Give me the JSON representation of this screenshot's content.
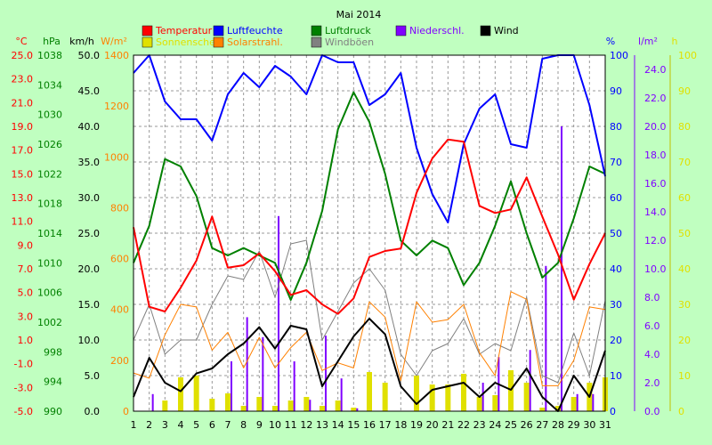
{
  "chart_data": {
    "type": "line",
    "title": "Mai 2014",
    "grid": true,
    "x": [
      1,
      2,
      3,
      4,
      5,
      6,
      7,
      8,
      9,
      10,
      11,
      12,
      13,
      14,
      15,
      16,
      17,
      18,
      19,
      20,
      21,
      22,
      23,
      24,
      25,
      26,
      27,
      28,
      29,
      30,
      31
    ],
    "xlim": [
      1,
      31
    ],
    "legend": [
      {
        "name": "Temperatur",
        "color": "#ff0000"
      },
      {
        "name": "Luftfeuchte",
        "color": "#0000ff"
      },
      {
        "name": "Luftdruck",
        "color": "#008000"
      },
      {
        "name": "Niederschl.",
        "color": "#8000ff"
      },
      {
        "name": "Wind",
        "color": "#000000"
      },
      {
        "name": "Sonnenschein",
        "color": "#e0e000"
      },
      {
        "name": "Solarstrahl.",
        "color": "#ff8000"
      },
      {
        "name": "Windböen",
        "color": "#808080"
      }
    ],
    "axes": {
      "temperature": {
        "unit": "°C",
        "color": "#ff0000",
        "range": [
          -5,
          25
        ],
        "ticks": [
          "25.0",
          "23.0",
          "21.0",
          "19.0",
          "17.0",
          "15.0",
          "13.0",
          "11.0",
          "9.0",
          "7.0",
          "5.0",
          "3.0",
          "1.0",
          "-1.0",
          "-3.0",
          "-5.0"
        ]
      },
      "pressure": {
        "unit": "hPa",
        "color": "#008000",
        "range": [
          990,
          1038
        ],
        "ticks": [
          "1038",
          "1034",
          "1030",
          "1026",
          "1022",
          "1018",
          "1014",
          "1010",
          "1006",
          "1002",
          "998",
          "994",
          "990"
        ]
      },
      "wind": {
        "unit": "km/h",
        "color": "#000000",
        "range": [
          0,
          50
        ],
        "ticks": [
          "50.0",
          "45.0",
          "40.0",
          "35.0",
          "30.0",
          "25.0",
          "20.0",
          "15.0",
          "10.0",
          "5.0",
          "0.0"
        ]
      },
      "solar": {
        "unit": "W/m²",
        "color": "#ff8000",
        "range": [
          0,
          1400
        ],
        "ticks": [
          "1400",
          "1200",
          "1000",
          "800",
          "600",
          "400",
          "200",
          "0"
        ]
      },
      "humidity": {
        "unit": "%",
        "color": "#0000ff",
        "range": [
          0,
          100
        ],
        "ticks": [
          "100",
          "90",
          "80",
          "70",
          "60",
          "50",
          "40",
          "30",
          "20",
          "10",
          "0"
        ]
      },
      "precipitation": {
        "unit": "l/m²",
        "color": "#8000ff",
        "range": [
          0,
          25
        ],
        "ticks": [
          "24.0",
          "22.0",
          "20.0",
          "18.0",
          "16.0",
          "14.0",
          "12.0",
          "10.0",
          "8.0",
          "6.0",
          "4.0",
          "2.0",
          "0.0"
        ]
      },
      "sunshine": {
        "unit": "h",
        "color": "#e0e000",
        "range": [
          0,
          100
        ],
        "ticks": [
          "100",
          "90",
          "80",
          "70",
          "60",
          "50",
          "40",
          "30",
          "20",
          "10",
          "0"
        ]
      }
    },
    "series": [
      {
        "name": "Temperatur",
        "axis": "temperature",
        "kind": "line",
        "color": "#ff0000",
        "values": [
          10.5,
          3.8,
          3.4,
          5.4,
          7.7,
          11.4,
          7.1,
          7.3,
          8.3,
          6.8,
          4.8,
          5.2,
          4.0,
          3.2,
          4.5,
          8.0,
          8.5,
          8.7,
          13.4,
          16.3,
          17.9,
          17.7,
          12.3,
          11.7,
          12.0,
          14.7,
          11.4,
          8.2,
          4.4,
          7.4,
          10.0
        ]
      },
      {
        "name": "Luftfeuchte",
        "axis": "humidity",
        "kind": "line",
        "color": "#0000ff",
        "values": [
          95,
          100,
          87,
          82,
          82,
          76,
          89,
          95,
          91,
          97,
          94,
          89,
          100,
          98,
          98,
          86,
          89,
          95,
          74,
          61,
          53,
          75,
          85,
          89,
          75,
          74,
          99,
          100,
          100,
          86,
          66
        ]
      },
      {
        "name": "Luftdruck",
        "axis": "pressure",
        "kind": "line",
        "color": "#008000",
        "values": [
          1010,
          1015,
          1024,
          1023,
          1019,
          1012,
          1011,
          1012,
          1011,
          1010,
          1005,
          1010,
          1017,
          1028,
          1033,
          1029,
          1022,
          1013,
          1011,
          1013,
          1012,
          1007,
          1010,
          1015,
          1021,
          1014,
          1008,
          1010,
          1016,
          1023,
          1022
        ]
      },
      {
        "name": "Wind",
        "axis": "wind",
        "kind": "line",
        "color": "#000000",
        "values": [
          2,
          7.5,
          4,
          2.8,
          5.3,
          6,
          8,
          9.5,
          11.8,
          8.8,
          12,
          11.5,
          3.5,
          7,
          10.5,
          13,
          10.8,
          3.5,
          1,
          3,
          3.5,
          4,
          2,
          4,
          3,
          6,
          2,
          0,
          5,
          2,
          8.5
        ]
      },
      {
        "name": "Windböen",
        "axis": "wind",
        "kind": "line",
        "color": "#808080",
        "values": [
          10,
          15,
          8,
          10,
          10,
          15,
          19,
          18.5,
          22.5,
          16,
          23.5,
          24,
          10,
          14,
          18,
          20,
          17,
          8,
          5,
          8.5,
          9.5,
          13,
          8,
          9.5,
          8.5,
          16,
          5,
          4,
          11,
          5,
          15.5
        ]
      },
      {
        "name": "Solarstrahl.",
        "axis": "solar",
        "kind": "line",
        "color": "#ff8000",
        "values": [
          150,
          130,
          300,
          420,
          410,
          240,
          310,
          170,
          290,
          170,
          250,
          310,
          160,
          190,
          170,
          430,
          370,
          120,
          430,
          350,
          360,
          420,
          230,
          140,
          470,
          440,
          100,
          100,
          200,
          410,
          400
        ]
      },
      {
        "name": "Sonnenschein",
        "axis": "sunshine",
        "kind": "bar",
        "color": "#e0e000",
        "values": [
          0,
          0,
          3,
          9.5,
          10,
          3.5,
          5,
          1.5,
          4,
          1.5,
          3,
          4,
          1.5,
          3,
          1,
          11,
          8,
          0,
          10,
          7.5,
          7.5,
          10.5,
          4,
          4.5,
          11.5,
          8,
          1,
          1.5,
          4,
          8,
          9.5
        ]
      },
      {
        "name": "Niederschl.",
        "axis": "precipitation",
        "kind": "bar",
        "color": "#8000ff",
        "values": [
          0,
          1.2,
          0,
          0,
          0,
          0,
          3.5,
          6.6,
          5.2,
          13.7,
          3.5,
          0.8,
          5.3,
          2.3,
          0.2,
          0,
          0,
          0,
          0,
          0,
          0,
          0,
          2.0,
          3.8,
          0,
          4.3,
          10.2,
          20.0,
          1.2,
          1.2,
          0
        ]
      }
    ]
  }
}
